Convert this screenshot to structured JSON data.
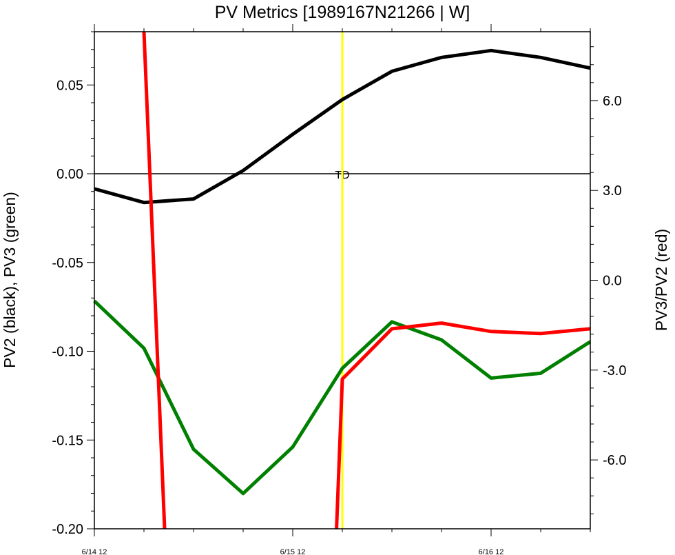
{
  "chart_data": {
    "type": "line",
    "title": "PV Metrics [1989167N21266 | W]",
    "ylabel_left": "PV2 (black), PV3 (green)",
    "ylabel_right": "PV3/PV2 (red)",
    "x_tick_labels": [
      "6/14 12",
      "6/15 12",
      "6/16 12"
    ],
    "x_tick_hours": [
      0,
      24,
      48
    ],
    "xlim_hours": [
      0,
      60
    ],
    "ylim_left": [
      -0.2,
      0.08
    ],
    "ylim_right": [
      -8.3,
      8.3
    ],
    "left_ticks": [
      0.05,
      0.0,
      -0.05,
      -0.1,
      -0.15,
      -0.2
    ],
    "left_tick_labels": [
      "0.05",
      "0.00",
      "-0.05",
      "-0.10",
      "-0.15",
      "-0.20"
    ],
    "right_ticks": [
      6.0,
      3.0,
      0.0,
      -3.0,
      -6.0
    ],
    "right_tick_labels": [
      "6.0",
      "3.0",
      "0.0",
      "-3.0",
      "-6.0"
    ],
    "zero_line_left": 0.0,
    "annotation": {
      "text": "TD",
      "x_hours": 30,
      "y": 0.0
    },
    "marker_line": {
      "x_hours": 30,
      "color": "#ffff00"
    },
    "series": [
      {
        "axis": "left",
        "color": "#000000",
        "x_hours": [
          0,
          6,
          12,
          18,
          24,
          30,
          36,
          42,
          48,
          54,
          60
        ],
        "values": [
          -0.0085,
          -0.0162,
          -0.0142,
          0.0018,
          0.0222,
          0.0418,
          0.0577,
          0.0655,
          0.0694,
          0.0655,
          0.0595
        ]
      },
      {
        "axis": "left",
        "color": "#008000",
        "x_hours": [
          0,
          6,
          12,
          18,
          24,
          30,
          36,
          42,
          48,
          54,
          60
        ],
        "values": [
          -0.0717,
          -0.0983,
          -0.1552,
          -0.1801,
          -0.1539,
          -0.1096,
          -0.0834,
          -0.0936,
          -0.1151,
          -0.1124,
          -0.0946
        ]
      },
      {
        "axis": "right",
        "color": "#ff0000",
        "segments": [
          {
            "x_hours": [
              6,
              8.5
            ],
            "values": [
              8.3,
              -8.3
            ]
          },
          {
            "x_hours": [
              29.3,
              30,
              36,
              42,
              48,
              54,
              60
            ],
            "values": [
              -8.3,
              -3.3,
              -1.62,
              -1.43,
              -1.71,
              -1.78,
              -1.62
            ]
          }
        ]
      }
    ]
  }
}
